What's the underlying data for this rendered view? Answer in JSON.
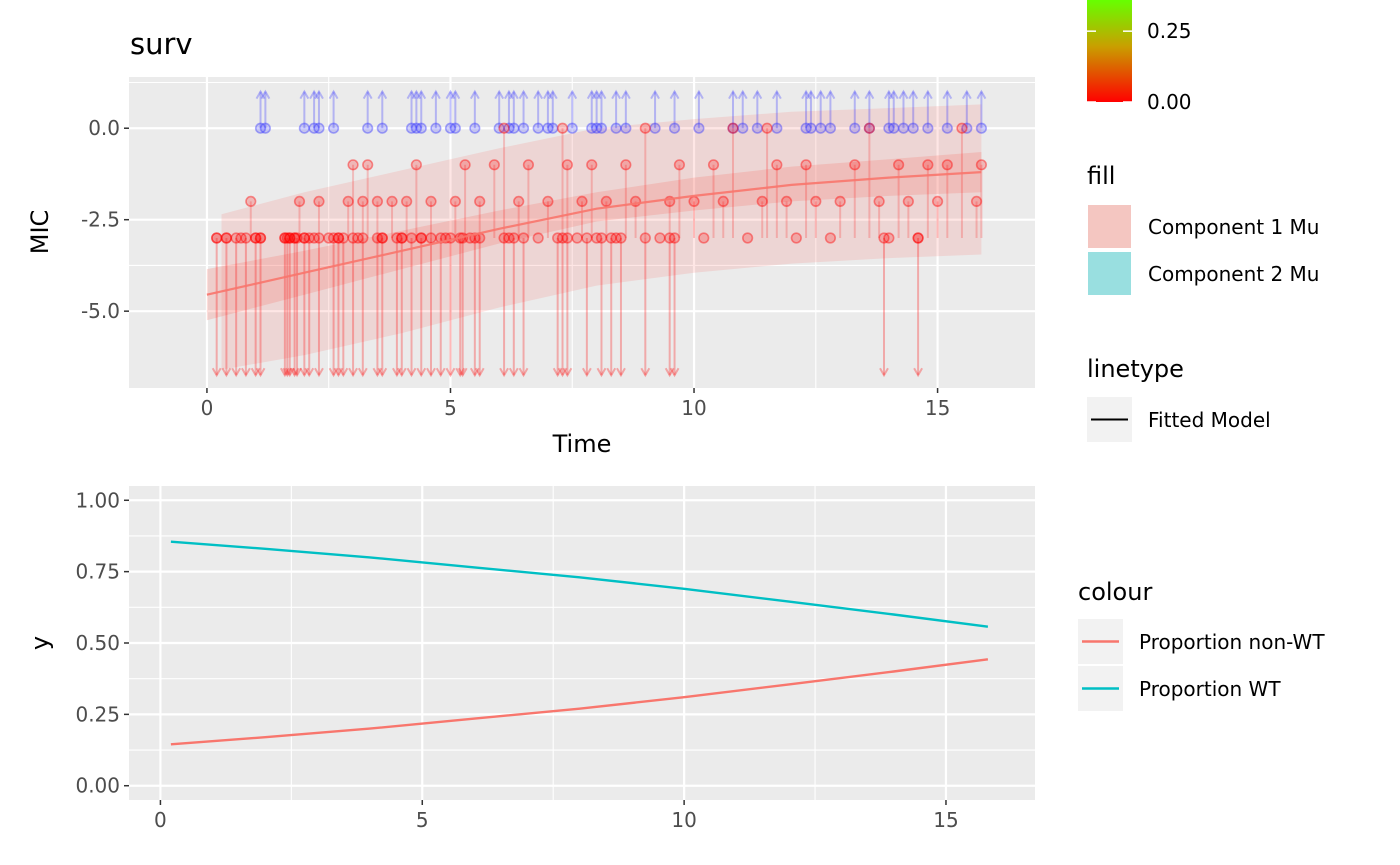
{
  "chart_data": [
    {
      "type": "scatter",
      "title": "surv",
      "xlabel": "Time",
      "ylabel": "MIC",
      "xlim": [
        -1.6,
        17.0
      ],
      "ylim": [
        -7.1,
        1.4
      ],
      "x_ticks": [
        "0",
        "5",
        "10",
        "15"
      ],
      "y_ticks": [
        "-5.0",
        "-2.5",
        "0.0"
      ],
      "grid": true,
      "fitted_model": {
        "name": "Fitted Model",
        "x": [
          0,
          2,
          4,
          6,
          8,
          10,
          12,
          14,
          15.9
        ],
        "y": [
          -4.55,
          -3.95,
          -3.35,
          -2.75,
          -2.2,
          -1.85,
          -1.55,
          -1.35,
          -1.2
        ]
      },
      "band_inner": {
        "name": "Component 1 Mu",
        "x": [
          0,
          2,
          4,
          6,
          8,
          10,
          12,
          14,
          15.9
        ],
        "lower": [
          -5.25,
          -4.55,
          -3.85,
          -3.15,
          -2.55,
          -2.25,
          -2.0,
          -1.85,
          -1.75
        ],
        "upper": [
          -3.85,
          -3.35,
          -2.8,
          -2.25,
          -1.75,
          -1.35,
          -1.05,
          -0.85,
          -0.65
        ]
      },
      "band_outer": {
        "x": [
          0.3,
          2,
          4,
          6,
          8,
          10,
          12,
          14,
          15.9
        ],
        "lower": [
          -6.6,
          -6.2,
          -5.6,
          -4.9,
          -4.3,
          -3.95,
          -3.7,
          -3.55,
          -3.45
        ],
        "upper": [
          -2.35,
          -1.75,
          -1.15,
          -0.55,
          0.0,
          0.25,
          0.45,
          0.55,
          0.65
        ]
      },
      "censored_low_value": -6.75,
      "censored_high_value": 1.0,
      "observed_points": [
        {
          "x": 0.2,
          "y": -3
        },
        {
          "x": 0.4,
          "y": -3
        },
        {
          "x": 0.7,
          "y": -3
        },
        {
          "x": 0.9,
          "y": -2
        },
        {
          "x": 1.0,
          "y": -3
        },
        {
          "x": 1.1,
          "y": -3
        },
        {
          "x": 1.6,
          "y": -3
        },
        {
          "x": 1.7,
          "y": -3
        },
        {
          "x": 1.8,
          "y": -3
        },
        {
          "x": 1.9,
          "y": -2
        },
        {
          "x": 2.0,
          "y": -3
        },
        {
          "x": 2.2,
          "y": -3
        },
        {
          "x": 2.3,
          "y": -2
        },
        {
          "x": 2.5,
          "y": -3
        },
        {
          "x": 2.7,
          "y": -3
        },
        {
          "x": 2.9,
          "y": -2
        },
        {
          "x": 3.0,
          "y": -1
        },
        {
          "x": 3.1,
          "y": -3
        },
        {
          "x": 3.2,
          "y": -2
        },
        {
          "x": 3.3,
          "y": -1
        },
        {
          "x": 3.5,
          "y": -2
        },
        {
          "x": 3.6,
          "y": -3
        },
        {
          "x": 3.8,
          "y": -2
        },
        {
          "x": 4.0,
          "y": -3
        },
        {
          "x": 4.1,
          "y": -2
        },
        {
          "x": 4.3,
          "y": -1
        },
        {
          "x": 4.4,
          "y": -3
        },
        {
          "x": 4.6,
          "y": -2
        },
        {
          "x": 4.9,
          "y": -3
        },
        {
          "x": 5.1,
          "y": -2
        },
        {
          "x": 5.3,
          "y": -1
        },
        {
          "x": 5.4,
          "y": -3
        },
        {
          "x": 5.6,
          "y": -2
        },
        {
          "x": 5.9,
          "y": -1
        },
        {
          "x": 6.1,
          "y": 0
        },
        {
          "x": 6.2,
          "y": -3
        },
        {
          "x": 6.4,
          "y": -2
        },
        {
          "x": 6.6,
          "y": -1
        },
        {
          "x": 6.8,
          "y": -3
        },
        {
          "x": 7.0,
          "y": -2
        },
        {
          "x": 7.3,
          "y": 0
        },
        {
          "x": 7.4,
          "y": -1
        },
        {
          "x": 7.6,
          "y": -3
        },
        {
          "x": 7.7,
          "y": -2
        },
        {
          "x": 7.9,
          "y": -1
        },
        {
          "x": 8.0,
          "y": -3
        },
        {
          "x": 8.2,
          "y": -2
        },
        {
          "x": 8.4,
          "y": -3
        },
        {
          "x": 8.6,
          "y": -1
        },
        {
          "x": 8.8,
          "y": -2
        },
        {
          "x": 9.0,
          "y": 0
        },
        {
          "x": 9.3,
          "y": -3
        },
        {
          "x": 9.5,
          "y": -2
        },
        {
          "x": 9.7,
          "y": -1
        },
        {
          "x": 10.0,
          "y": -2
        },
        {
          "x": 10.2,
          "y": -3
        },
        {
          "x": 10.4,
          "y": -1
        },
        {
          "x": 10.6,
          "y": -2
        },
        {
          "x": 10.8,
          "y": 0
        },
        {
          "x": 11.1,
          "y": -3
        },
        {
          "x": 11.4,
          "y": -2
        },
        {
          "x": 11.5,
          "y": 0
        },
        {
          "x": 11.7,
          "y": -1
        },
        {
          "x": 11.9,
          "y": -2
        },
        {
          "x": 12.1,
          "y": -3
        },
        {
          "x": 12.3,
          "y": -1
        },
        {
          "x": 12.5,
          "y": -2
        },
        {
          "x": 12.8,
          "y": -3
        },
        {
          "x": 13.0,
          "y": -2
        },
        {
          "x": 13.3,
          "y": -1
        },
        {
          "x": 13.6,
          "y": 0
        },
        {
          "x": 13.8,
          "y": -2
        },
        {
          "x": 14.0,
          "y": -3
        },
        {
          "x": 14.2,
          "y": -1
        },
        {
          "x": 14.4,
          "y": -2
        },
        {
          "x": 14.6,
          "y": -3
        },
        {
          "x": 14.8,
          "y": -1
        },
        {
          "x": 15.0,
          "y": -2
        },
        {
          "x": 15.2,
          "y": -1
        },
        {
          "x": 15.5,
          "y": 0
        },
        {
          "x": 15.8,
          "y": -2
        },
        {
          "x": 15.9,
          "y": -1
        }
      ],
      "left_censored": [
        {
          "x": 0.2,
          "y": -3
        },
        {
          "x": 0.4,
          "y": -3
        },
        {
          "x": 0.6,
          "y": -3
        },
        {
          "x": 0.8,
          "y": -3
        },
        {
          "x": 1.0,
          "y": -3
        },
        {
          "x": 1.1,
          "y": -3
        },
        {
          "x": 1.6,
          "y": -3
        },
        {
          "x": 1.65,
          "y": -3
        },
        {
          "x": 1.7,
          "y": -3
        },
        {
          "x": 1.8,
          "y": -3
        },
        {
          "x": 1.85,
          "y": -3
        },
        {
          "x": 2.0,
          "y": -3
        },
        {
          "x": 2.1,
          "y": -3
        },
        {
          "x": 2.3,
          "y": -3
        },
        {
          "x": 2.6,
          "y": -3
        },
        {
          "x": 2.7,
          "y": -3
        },
        {
          "x": 2.8,
          "y": -3
        },
        {
          "x": 3.0,
          "y": -3
        },
        {
          "x": 3.2,
          "y": -3
        },
        {
          "x": 3.5,
          "y": -3
        },
        {
          "x": 3.6,
          "y": -3
        },
        {
          "x": 3.9,
          "y": -3
        },
        {
          "x": 4.0,
          "y": -3
        },
        {
          "x": 4.2,
          "y": -3
        },
        {
          "x": 4.4,
          "y": -3
        },
        {
          "x": 4.6,
          "y": -3
        },
        {
          "x": 4.8,
          "y": -3
        },
        {
          "x": 5.0,
          "y": -3
        },
        {
          "x": 5.2,
          "y": -3
        },
        {
          "x": 5.25,
          "y": -3
        },
        {
          "x": 5.5,
          "y": -3
        },
        {
          "x": 5.6,
          "y": -3
        },
        {
          "x": 6.1,
          "y": -3
        },
        {
          "x": 6.3,
          "y": -3
        },
        {
          "x": 6.5,
          "y": -3
        },
        {
          "x": 7.2,
          "y": -3
        },
        {
          "x": 7.3,
          "y": -3
        },
        {
          "x": 7.4,
          "y": -3
        },
        {
          "x": 7.8,
          "y": -3
        },
        {
          "x": 8.1,
          "y": -3
        },
        {
          "x": 8.3,
          "y": -3
        },
        {
          "x": 8.5,
          "y": -3
        },
        {
          "x": 9.0,
          "y": -3
        },
        {
          "x": 9.5,
          "y": -3
        },
        {
          "x": 9.6,
          "y": -3
        },
        {
          "x": 13.9,
          "y": -3
        },
        {
          "x": 14.6,
          "y": -3
        }
      ],
      "right_censored": [
        {
          "x": 1.1,
          "y": 0
        },
        {
          "x": 1.2,
          "y": 0
        },
        {
          "x": 2.0,
          "y": 0
        },
        {
          "x": 2.2,
          "y": 0
        },
        {
          "x": 2.3,
          "y": 0
        },
        {
          "x": 2.6,
          "y": 0
        },
        {
          "x": 3.3,
          "y": 0
        },
        {
          "x": 3.6,
          "y": 0
        },
        {
          "x": 4.2,
          "y": 0
        },
        {
          "x": 4.3,
          "y": 0
        },
        {
          "x": 4.4,
          "y": 0
        },
        {
          "x": 4.7,
          "y": 0
        },
        {
          "x": 5.0,
          "y": 0
        },
        {
          "x": 5.1,
          "y": 0
        },
        {
          "x": 5.5,
          "y": 0
        },
        {
          "x": 6.0,
          "y": 0
        },
        {
          "x": 6.2,
          "y": 0
        },
        {
          "x": 6.3,
          "y": 0
        },
        {
          "x": 6.5,
          "y": 0
        },
        {
          "x": 6.8,
          "y": 0
        },
        {
          "x": 7.0,
          "y": 0
        },
        {
          "x": 7.1,
          "y": 0
        },
        {
          "x": 7.5,
          "y": 0
        },
        {
          "x": 7.9,
          "y": 0
        },
        {
          "x": 8.0,
          "y": 0
        },
        {
          "x": 8.1,
          "y": 0
        },
        {
          "x": 8.4,
          "y": 0
        },
        {
          "x": 8.6,
          "y": 0
        },
        {
          "x": 9.2,
          "y": 0
        },
        {
          "x": 9.6,
          "y": 0
        },
        {
          "x": 10.1,
          "y": 0
        },
        {
          "x": 10.8,
          "y": 0
        },
        {
          "x": 11.0,
          "y": 0
        },
        {
          "x": 11.3,
          "y": 0
        },
        {
          "x": 11.7,
          "y": 0
        },
        {
          "x": 12.3,
          "y": 0
        },
        {
          "x": 12.4,
          "y": 0
        },
        {
          "x": 12.6,
          "y": 0
        },
        {
          "x": 12.8,
          "y": 0
        },
        {
          "x": 13.3,
          "y": 0
        },
        {
          "x": 13.6,
          "y": 0
        },
        {
          "x": 14.0,
          "y": 0
        },
        {
          "x": 14.1,
          "y": 0
        },
        {
          "x": 14.3,
          "y": 0
        },
        {
          "x": 14.5,
          "y": 0
        },
        {
          "x": 14.8,
          "y": 0
        },
        {
          "x": 15.2,
          "y": 0
        },
        {
          "x": 15.6,
          "y": 0
        },
        {
          "x": 15.9,
          "y": 0
        }
      ],
      "colorbar": {
        "ticks": [
          "0.25",
          "0.00"
        ],
        "tick_values": [
          0.25,
          0.0
        ],
        "visible_range": [
          0.0,
          0.36
        ],
        "colors": [
          "#ff0000",
          "#c8a000",
          "#66ff00"
        ]
      },
      "legend": {
        "fill": {
          "title": "fill",
          "items": [
            {
              "label": "Component 1 Mu",
              "color": "#f4c6c1"
            },
            {
              "label": "Component 2 Mu",
              "color": "#99dfe0"
            }
          ]
        },
        "linetype": {
          "title": "linetype",
          "items": [
            {
              "label": "Fitted Model"
            }
          ]
        }
      },
      "colors": {
        "observed": "#ff0000",
        "censored_high": "#3333ff",
        "fit": "#f8766d",
        "band": "#f8766d",
        "panel_bg": "#ebebeb",
        "grid": "#ffffff"
      }
    },
    {
      "type": "line",
      "title": "",
      "xlabel": "",
      "ylabel": "y",
      "xlim": [
        -0.6,
        16.7
      ],
      "ylim": [
        -0.05,
        1.05
      ],
      "x_ticks": [
        "0",
        "5",
        "10",
        "15"
      ],
      "y_ticks": [
        "0.00",
        "0.25",
        "0.50",
        "0.75",
        "1.00"
      ],
      "grid": true,
      "series": [
        {
          "name": "Proportion non-WT",
          "color": "#f8766d",
          "x": [
            0.2,
            2,
            4,
            6,
            8,
            10,
            12,
            14,
            15.8
          ],
          "y": [
            0.145,
            0.17,
            0.2,
            0.235,
            0.27,
            0.31,
            0.355,
            0.4,
            0.443
          ]
        },
        {
          "name": "Proportion WT",
          "color": "#00bfc4",
          "x": [
            0.2,
            2,
            4,
            6,
            8,
            10,
            12,
            14,
            15.8
          ],
          "y": [
            0.855,
            0.83,
            0.8,
            0.765,
            0.73,
            0.69,
            0.645,
            0.6,
            0.557
          ]
        }
      ],
      "legend": {
        "title": "colour"
      }
    }
  ]
}
